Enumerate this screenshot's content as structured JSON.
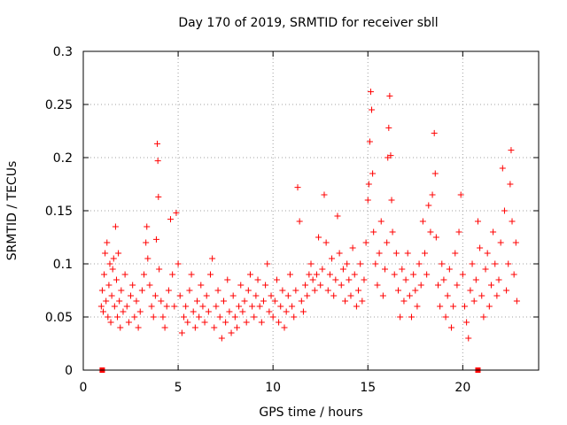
{
  "chart_data": {
    "type": "scatter",
    "title": "Day 170 of 2019, SRMTID for receiver sbll",
    "xlabel": "GPS time / hours",
    "ylabel": "SRMTID / TECUs",
    "xlim": [
      0,
      24
    ],
    "ylim": [
      0,
      0.3
    ],
    "x_ticks": [
      0,
      5,
      10,
      15,
      20
    ],
    "y_ticks": [
      0,
      0.05,
      0.1,
      0.15,
      0.2,
      0.25,
      0.3
    ],
    "grid": true,
    "marker": "plus",
    "color": "#ff0000",
    "baseline_markers": [
      1.0,
      20.8
    ],
    "series": [
      {
        "name": "SRMTID",
        "points": [
          [
            0.95,
            0.06
          ],
          [
            1.0,
            0.075
          ],
          [
            1.05,
            0.055
          ],
          [
            1.1,
            0.09
          ],
          [
            1.15,
            0.11
          ],
          [
            1.2,
            0.065
          ],
          [
            1.25,
            0.12
          ],
          [
            1.3,
            0.05
          ],
          [
            1.35,
            0.08
          ],
          [
            1.4,
            0.1
          ],
          [
            1.45,
            0.045
          ],
          [
            1.5,
            0.07
          ],
          [
            1.55,
            0.095
          ],
          [
            1.6,
            0.105
          ],
          [
            1.65,
            0.06
          ],
          [
            1.7,
            0.135
          ],
          [
            1.75,
            0.085
          ],
          [
            1.8,
            0.05
          ],
          [
            1.85,
            0.11
          ],
          [
            1.9,
            0.065
          ],
          [
            1.95,
            0.04
          ],
          [
            2.0,
            0.075
          ],
          [
            2.1,
            0.055
          ],
          [
            2.2,
            0.09
          ],
          [
            2.3,
            0.06
          ],
          [
            2.4,
            0.045
          ],
          [
            2.5,
            0.07
          ],
          [
            2.6,
            0.08
          ],
          [
            2.7,
            0.05
          ],
          [
            2.8,
            0.065
          ],
          [
            2.9,
            0.04
          ],
          [
            3.0,
            0.055
          ],
          [
            3.1,
            0.075
          ],
          [
            3.2,
            0.09
          ],
          [
            3.3,
            0.12
          ],
          [
            3.35,
            0.135
          ],
          [
            3.4,
            0.105
          ],
          [
            3.5,
            0.08
          ],
          [
            3.6,
            0.06
          ],
          [
            3.7,
            0.05
          ],
          [
            3.8,
            0.07
          ],
          [
            3.85,
            0.123
          ],
          [
            3.9,
            0.213
          ],
          [
            3.93,
            0.197
          ],
          [
            3.96,
            0.163
          ],
          [
            4.0,
            0.095
          ],
          [
            4.1,
            0.065
          ],
          [
            4.2,
            0.05
          ],
          [
            4.3,
            0.04
          ],
          [
            4.4,
            0.06
          ],
          [
            4.5,
            0.075
          ],
          [
            4.6,
            0.142
          ],
          [
            4.7,
            0.09
          ],
          [
            4.8,
            0.06
          ],
          [
            4.9,
            0.148
          ],
          [
            5.0,
            0.1
          ],
          [
            5.1,
            0.07
          ],
          [
            5.2,
            0.035
          ],
          [
            5.3,
            0.05
          ],
          [
            5.4,
            0.06
          ],
          [
            5.5,
            0.045
          ],
          [
            5.6,
            0.075
          ],
          [
            5.7,
            0.09
          ],
          [
            5.8,
            0.055
          ],
          [
            5.9,
            0.04
          ],
          [
            6.0,
            0.065
          ],
          [
            6.1,
            0.05
          ],
          [
            6.2,
            0.08
          ],
          [
            6.3,
            0.06
          ],
          [
            6.4,
            0.045
          ],
          [
            6.5,
            0.07
          ],
          [
            6.6,
            0.055
          ],
          [
            6.7,
            0.09
          ],
          [
            6.8,
            0.105
          ],
          [
            6.9,
            0.04
          ],
          [
            7.0,
            0.06
          ],
          [
            7.1,
            0.075
          ],
          [
            7.2,
            0.05
          ],
          [
            7.3,
            0.03
          ],
          [
            7.4,
            0.065
          ],
          [
            7.5,
            0.045
          ],
          [
            7.6,
            0.085
          ],
          [
            7.7,
            0.055
          ],
          [
            7.8,
            0.035
          ],
          [
            7.9,
            0.07
          ],
          [
            8.0,
            0.05
          ],
          [
            8.1,
            0.04
          ],
          [
            8.2,
            0.06
          ],
          [
            8.3,
            0.08
          ],
          [
            8.4,
            0.055
          ],
          [
            8.5,
            0.065
          ],
          [
            8.6,
            0.045
          ],
          [
            8.7,
            0.075
          ],
          [
            8.8,
            0.09
          ],
          [
            8.9,
            0.06
          ],
          [
            9.0,
            0.05
          ],
          [
            9.1,
            0.07
          ],
          [
            9.2,
            0.085
          ],
          [
            9.3,
            0.06
          ],
          [
            9.4,
            0.045
          ],
          [
            9.5,
            0.065
          ],
          [
            9.6,
            0.08
          ],
          [
            9.7,
            0.1
          ],
          [
            9.8,
            0.055
          ],
          [
            9.9,
            0.07
          ],
          [
            10.0,
            0.05
          ],
          [
            10.1,
            0.065
          ],
          [
            10.2,
            0.085
          ],
          [
            10.3,
            0.045
          ],
          [
            10.4,
            0.06
          ],
          [
            10.5,
            0.075
          ],
          [
            10.6,
            0.04
          ],
          [
            10.7,
            0.055
          ],
          [
            10.8,
            0.07
          ],
          [
            10.9,
            0.09
          ],
          [
            11.0,
            0.06
          ],
          [
            11.1,
            0.05
          ],
          [
            11.2,
            0.075
          ],
          [
            11.3,
            0.172
          ],
          [
            11.4,
            0.14
          ],
          [
            11.5,
            0.065
          ],
          [
            11.6,
            0.055
          ],
          [
            11.7,
            0.08
          ],
          [
            11.8,
            0.07
          ],
          [
            11.9,
            0.09
          ],
          [
            12.0,
            0.1
          ],
          [
            12.1,
            0.085
          ],
          [
            12.2,
            0.075
          ],
          [
            12.3,
            0.09
          ],
          [
            12.4,
            0.125
          ],
          [
            12.5,
            0.08
          ],
          [
            12.6,
            0.095
          ],
          [
            12.7,
            0.165
          ],
          [
            12.8,
            0.12
          ],
          [
            12.9,
            0.075
          ],
          [
            13.0,
            0.09
          ],
          [
            13.1,
            0.105
          ],
          [
            13.2,
            0.07
          ],
          [
            13.3,
            0.085
          ],
          [
            13.4,
            0.145
          ],
          [
            13.5,
            0.11
          ],
          [
            13.6,
            0.08
          ],
          [
            13.7,
            0.095
          ],
          [
            13.8,
            0.065
          ],
          [
            13.9,
            0.1
          ],
          [
            14.0,
            0.085
          ],
          [
            14.1,
            0.07
          ],
          [
            14.2,
            0.115
          ],
          [
            14.3,
            0.09
          ],
          [
            14.4,
            0.06
          ],
          [
            14.5,
            0.075
          ],
          [
            14.6,
            0.1
          ],
          [
            14.7,
            0.065
          ],
          [
            14.8,
            0.085
          ],
          [
            14.9,
            0.12
          ],
          [
            15.0,
            0.16
          ],
          [
            15.05,
            0.175
          ],
          [
            15.1,
            0.215
          ],
          [
            15.15,
            0.262
          ],
          [
            15.2,
            0.245
          ],
          [
            15.25,
            0.185
          ],
          [
            15.3,
            0.13
          ],
          [
            15.4,
            0.1
          ],
          [
            15.5,
            0.08
          ],
          [
            15.6,
            0.11
          ],
          [
            15.7,
            0.14
          ],
          [
            15.8,
            0.07
          ],
          [
            15.9,
            0.095
          ],
          [
            16.0,
            0.12
          ],
          [
            16.05,
            0.2
          ],
          [
            16.1,
            0.228
          ],
          [
            16.15,
            0.258
          ],
          [
            16.2,
            0.202
          ],
          [
            16.25,
            0.16
          ],
          [
            16.3,
            0.13
          ],
          [
            16.4,
            0.09
          ],
          [
            16.5,
            0.11
          ],
          [
            16.6,
            0.075
          ],
          [
            16.7,
            0.05
          ],
          [
            16.8,
            0.095
          ],
          [
            16.9,
            0.065
          ],
          [
            17.0,
            0.085
          ],
          [
            17.1,
            0.11
          ],
          [
            17.2,
            0.07
          ],
          [
            17.3,
            0.05
          ],
          [
            17.4,
            0.09
          ],
          [
            17.5,
            0.075
          ],
          [
            17.6,
            0.06
          ],
          [
            17.7,
            0.1
          ],
          [
            17.8,
            0.08
          ],
          [
            17.9,
            0.14
          ],
          [
            18.0,
            0.11
          ],
          [
            18.1,
            0.09
          ],
          [
            18.2,
            0.155
          ],
          [
            18.3,
            0.13
          ],
          [
            18.4,
            0.165
          ],
          [
            18.5,
            0.223
          ],
          [
            18.55,
            0.185
          ],
          [
            18.6,
            0.125
          ],
          [
            18.7,
            0.08
          ],
          [
            18.8,
            0.06
          ],
          [
            18.9,
            0.1
          ],
          [
            19.0,
            0.085
          ],
          [
            19.1,
            0.05
          ],
          [
            19.2,
            0.07
          ],
          [
            19.3,
            0.095
          ],
          [
            19.4,
            0.04
          ],
          [
            19.5,
            0.06
          ],
          [
            19.6,
            0.11
          ],
          [
            19.7,
            0.08
          ],
          [
            19.8,
            0.13
          ],
          [
            19.9,
            0.165
          ],
          [
            20.0,
            0.09
          ],
          [
            20.1,
            0.06
          ],
          [
            20.2,
            0.045
          ],
          [
            20.3,
            0.03
          ],
          [
            20.4,
            0.075
          ],
          [
            20.5,
            0.1
          ],
          [
            20.6,
            0.065
          ],
          [
            20.7,
            0.085
          ],
          [
            20.8,
            0.14
          ],
          [
            20.9,
            0.115
          ],
          [
            21.0,
            0.07
          ],
          [
            21.1,
            0.05
          ],
          [
            21.2,
            0.095
          ],
          [
            21.3,
            0.11
          ],
          [
            21.4,
            0.06
          ],
          [
            21.5,
            0.08
          ],
          [
            21.6,
            0.13
          ],
          [
            21.7,
            0.1
          ],
          [
            21.8,
            0.07
          ],
          [
            21.9,
            0.085
          ],
          [
            22.0,
            0.12
          ],
          [
            22.1,
            0.19
          ],
          [
            22.2,
            0.15
          ],
          [
            22.3,
            0.075
          ],
          [
            22.4,
            0.1
          ],
          [
            22.5,
            0.175
          ],
          [
            22.55,
            0.207
          ],
          [
            22.6,
            0.14
          ],
          [
            22.7,
            0.09
          ],
          [
            22.8,
            0.12
          ],
          [
            22.85,
            0.065
          ]
        ]
      }
    ]
  }
}
